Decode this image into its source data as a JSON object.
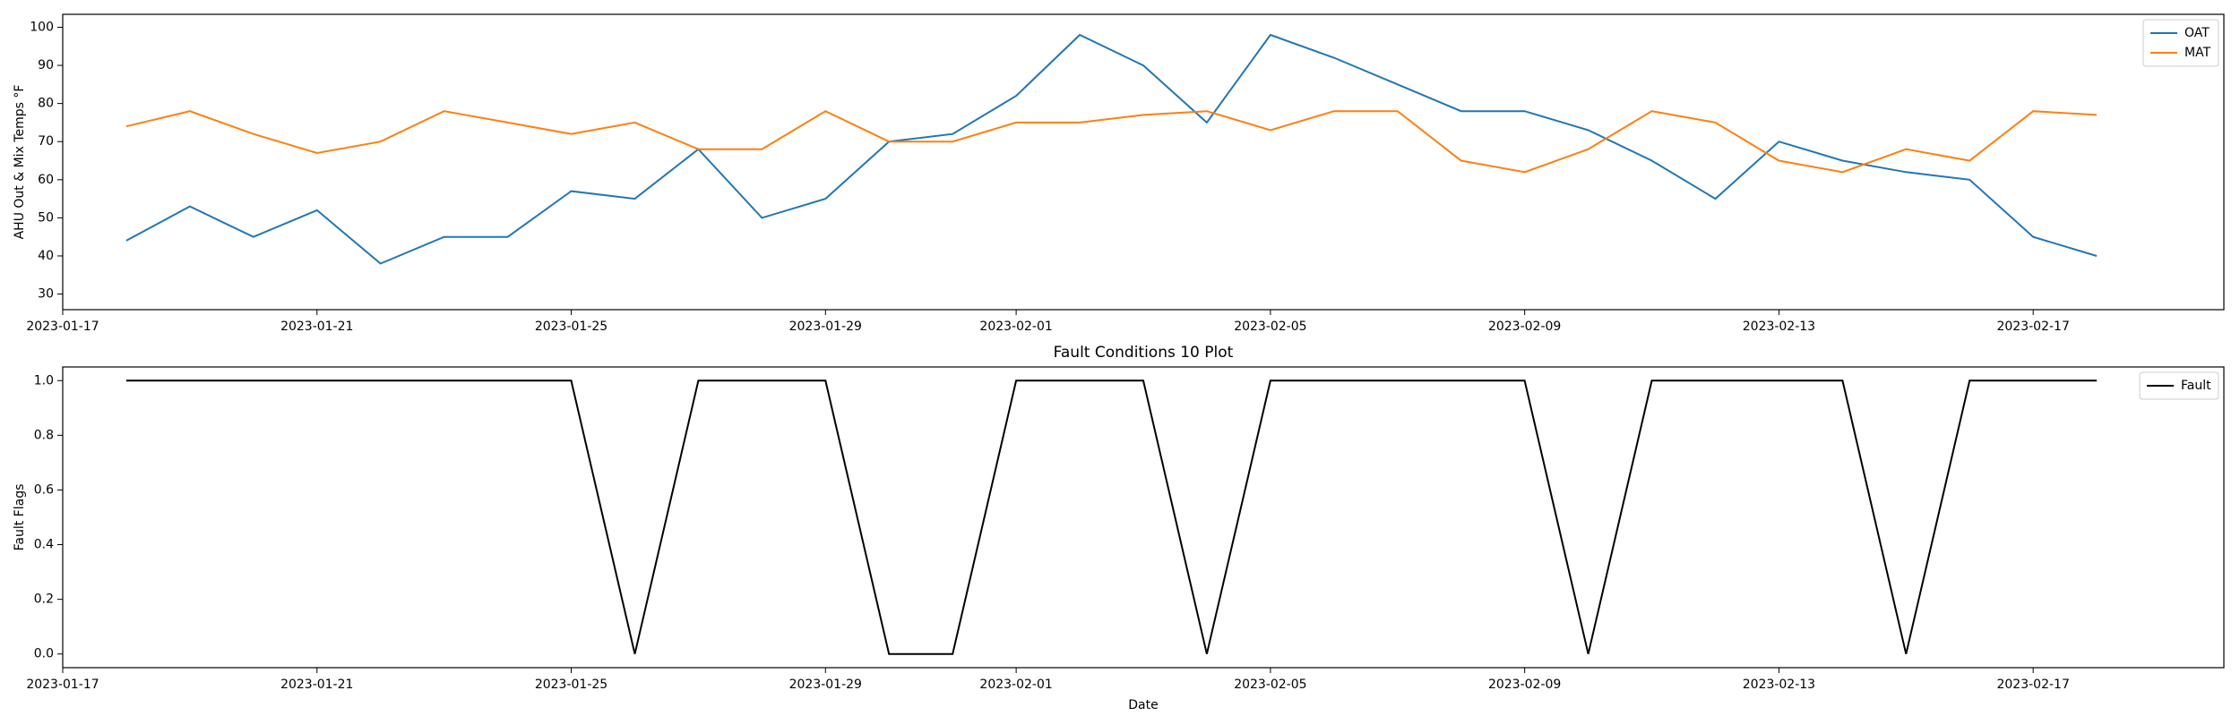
{
  "chart_data": [
    {
      "type": "line",
      "ylabel": "AHU Out & Mix Temps °F",
      "x": [
        "2023-01-18",
        "2023-01-19",
        "2023-01-20",
        "2023-01-21",
        "2023-01-22",
        "2023-01-23",
        "2023-01-24",
        "2023-01-25",
        "2023-01-26",
        "2023-01-27",
        "2023-01-28",
        "2023-01-29",
        "2023-01-30",
        "2023-01-31",
        "2023-02-01",
        "2023-02-02",
        "2023-02-03",
        "2023-02-04",
        "2023-02-05",
        "2023-02-06",
        "2023-02-07",
        "2023-02-08",
        "2023-02-09",
        "2023-02-10",
        "2023-02-11",
        "2023-02-12",
        "2023-02-13",
        "2023-02-14",
        "2023-02-15",
        "2023-02-16",
        "2023-02-17",
        "2023-02-18"
      ],
      "series": [
        {
          "name": "OAT",
          "color": "#1f77b4",
          "values": [
            44,
            53,
            45,
            52,
            38,
            45,
            45,
            57,
            55,
            68,
            50,
            55,
            70,
            72,
            82,
            98,
            90,
            75,
            98,
            92,
            85,
            78,
            78,
            73,
            65,
            55,
            70,
            65,
            62,
            60,
            45,
            40
          ]
        },
        {
          "name": "MAT",
          "color": "#ff7f0e",
          "values": [
            74,
            78,
            72,
            67,
            70,
            78,
            75,
            72,
            75,
            68,
            68,
            78,
            70,
            70,
            75,
            75,
            77,
            78,
            73,
            78,
            78,
            65,
            62,
            68,
            78,
            75,
            65,
            62,
            68,
            65,
            78,
            77
          ]
        }
      ],
      "xlim": [
        "2023-01-17",
        "2023-02-20"
      ],
      "xticks": [
        "2023-01-17",
        "2023-01-21",
        "2023-01-25",
        "2023-01-29",
        "2023-02-01",
        "2023-02-05",
        "2023-02-09",
        "2023-02-13",
        "2023-02-17"
      ],
      "ylim": [
        25.9,
        103.4
      ],
      "yticks": [
        30,
        40,
        50,
        60,
        70,
        80,
        90,
        100
      ],
      "legend": "upper right"
    },
    {
      "type": "line",
      "title": "Fault Conditions 10 Plot",
      "xlabel": "Date",
      "ylabel": "Fault Flags",
      "x": [
        "2023-01-18",
        "2023-01-19",
        "2023-01-20",
        "2023-01-21",
        "2023-01-22",
        "2023-01-23",
        "2023-01-24",
        "2023-01-25",
        "2023-01-26",
        "2023-01-27",
        "2023-01-28",
        "2023-01-29",
        "2023-01-30",
        "2023-01-31",
        "2023-02-01",
        "2023-02-02",
        "2023-02-03",
        "2023-02-04",
        "2023-02-05",
        "2023-02-06",
        "2023-02-07",
        "2023-02-08",
        "2023-02-09",
        "2023-02-10",
        "2023-02-11",
        "2023-02-12",
        "2023-02-13",
        "2023-02-14",
        "2023-02-15",
        "2023-02-16",
        "2023-02-17",
        "2023-02-18"
      ],
      "series": [
        {
          "name": "Fault",
          "color": "#000000",
          "values": [
            1,
            1,
            1,
            1,
            1,
            1,
            1,
            1,
            0,
            1,
            1,
            1,
            0,
            0,
            1,
            1,
            1,
            0,
            1,
            1,
            1,
            1,
            1,
            0,
            1,
            1,
            1,
            1,
            0,
            1,
            1,
            1
          ]
        }
      ],
      "xlim": [
        "2023-01-17",
        "2023-02-20"
      ],
      "xticks": [
        "2023-01-17",
        "2023-01-21",
        "2023-01-25",
        "2023-01-29",
        "2023-02-01",
        "2023-02-05",
        "2023-02-09",
        "2023-02-13",
        "2023-02-17"
      ],
      "ylim": [
        -0.05,
        1.05
      ],
      "yticks": [
        {
          "value": 0,
          "label": "0.0"
        },
        {
          "value": 0.2,
          "label": "0.2"
        },
        {
          "value": 0.4,
          "label": "0.4"
        },
        {
          "value": 0.6,
          "label": "0.6"
        },
        {
          "value": 0.8,
          "label": "0.8"
        },
        {
          "value": 1,
          "label": "1.0"
        }
      ],
      "legend": "upper right"
    }
  ]
}
